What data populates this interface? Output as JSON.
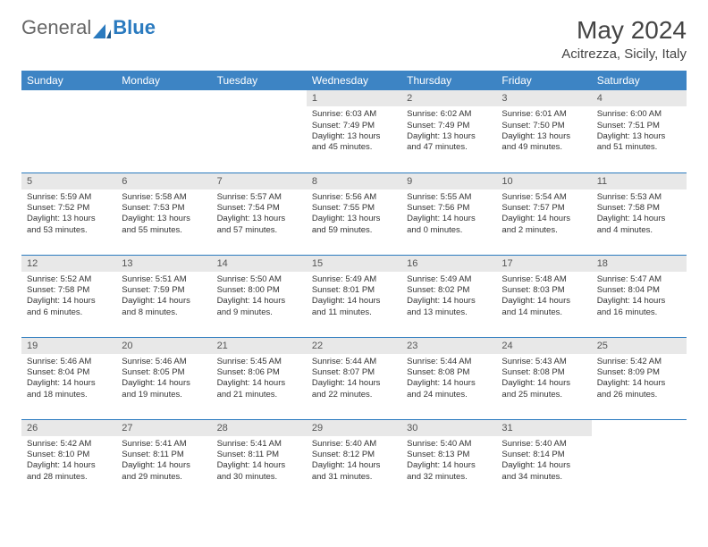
{
  "brand": {
    "part1": "General",
    "part2": "Blue"
  },
  "title": "May 2024",
  "location": "Acitrezza, Sicily, Italy",
  "header_bg": "#3d84c4",
  "rule_color": "#2a7abf",
  "daynum_bg": "#e8e8e8",
  "weekdays": [
    "Sunday",
    "Monday",
    "Tuesday",
    "Wednesday",
    "Thursday",
    "Friday",
    "Saturday"
  ],
  "weeks": [
    [
      null,
      null,
      null,
      {
        "n": "1",
        "sr": "Sunrise: 6:03 AM",
        "ss": "Sunset: 7:49 PM",
        "d1": "Daylight: 13 hours",
        "d2": "and 45 minutes."
      },
      {
        "n": "2",
        "sr": "Sunrise: 6:02 AM",
        "ss": "Sunset: 7:49 PM",
        "d1": "Daylight: 13 hours",
        "d2": "and 47 minutes."
      },
      {
        "n": "3",
        "sr": "Sunrise: 6:01 AM",
        "ss": "Sunset: 7:50 PM",
        "d1": "Daylight: 13 hours",
        "d2": "and 49 minutes."
      },
      {
        "n": "4",
        "sr": "Sunrise: 6:00 AM",
        "ss": "Sunset: 7:51 PM",
        "d1": "Daylight: 13 hours",
        "d2": "and 51 minutes."
      }
    ],
    [
      {
        "n": "5",
        "sr": "Sunrise: 5:59 AM",
        "ss": "Sunset: 7:52 PM",
        "d1": "Daylight: 13 hours",
        "d2": "and 53 minutes."
      },
      {
        "n": "6",
        "sr": "Sunrise: 5:58 AM",
        "ss": "Sunset: 7:53 PM",
        "d1": "Daylight: 13 hours",
        "d2": "and 55 minutes."
      },
      {
        "n": "7",
        "sr": "Sunrise: 5:57 AM",
        "ss": "Sunset: 7:54 PM",
        "d1": "Daylight: 13 hours",
        "d2": "and 57 minutes."
      },
      {
        "n": "8",
        "sr": "Sunrise: 5:56 AM",
        "ss": "Sunset: 7:55 PM",
        "d1": "Daylight: 13 hours",
        "d2": "and 59 minutes."
      },
      {
        "n": "9",
        "sr": "Sunrise: 5:55 AM",
        "ss": "Sunset: 7:56 PM",
        "d1": "Daylight: 14 hours",
        "d2": "and 0 minutes."
      },
      {
        "n": "10",
        "sr": "Sunrise: 5:54 AM",
        "ss": "Sunset: 7:57 PM",
        "d1": "Daylight: 14 hours",
        "d2": "and 2 minutes."
      },
      {
        "n": "11",
        "sr": "Sunrise: 5:53 AM",
        "ss": "Sunset: 7:58 PM",
        "d1": "Daylight: 14 hours",
        "d2": "and 4 minutes."
      }
    ],
    [
      {
        "n": "12",
        "sr": "Sunrise: 5:52 AM",
        "ss": "Sunset: 7:58 PM",
        "d1": "Daylight: 14 hours",
        "d2": "and 6 minutes."
      },
      {
        "n": "13",
        "sr": "Sunrise: 5:51 AM",
        "ss": "Sunset: 7:59 PM",
        "d1": "Daylight: 14 hours",
        "d2": "and 8 minutes."
      },
      {
        "n": "14",
        "sr": "Sunrise: 5:50 AM",
        "ss": "Sunset: 8:00 PM",
        "d1": "Daylight: 14 hours",
        "d2": "and 9 minutes."
      },
      {
        "n": "15",
        "sr": "Sunrise: 5:49 AM",
        "ss": "Sunset: 8:01 PM",
        "d1": "Daylight: 14 hours",
        "d2": "and 11 minutes."
      },
      {
        "n": "16",
        "sr": "Sunrise: 5:49 AM",
        "ss": "Sunset: 8:02 PM",
        "d1": "Daylight: 14 hours",
        "d2": "and 13 minutes."
      },
      {
        "n": "17",
        "sr": "Sunrise: 5:48 AM",
        "ss": "Sunset: 8:03 PM",
        "d1": "Daylight: 14 hours",
        "d2": "and 14 minutes."
      },
      {
        "n": "18",
        "sr": "Sunrise: 5:47 AM",
        "ss": "Sunset: 8:04 PM",
        "d1": "Daylight: 14 hours",
        "d2": "and 16 minutes."
      }
    ],
    [
      {
        "n": "19",
        "sr": "Sunrise: 5:46 AM",
        "ss": "Sunset: 8:04 PM",
        "d1": "Daylight: 14 hours",
        "d2": "and 18 minutes."
      },
      {
        "n": "20",
        "sr": "Sunrise: 5:46 AM",
        "ss": "Sunset: 8:05 PM",
        "d1": "Daylight: 14 hours",
        "d2": "and 19 minutes."
      },
      {
        "n": "21",
        "sr": "Sunrise: 5:45 AM",
        "ss": "Sunset: 8:06 PM",
        "d1": "Daylight: 14 hours",
        "d2": "and 21 minutes."
      },
      {
        "n": "22",
        "sr": "Sunrise: 5:44 AM",
        "ss": "Sunset: 8:07 PM",
        "d1": "Daylight: 14 hours",
        "d2": "and 22 minutes."
      },
      {
        "n": "23",
        "sr": "Sunrise: 5:44 AM",
        "ss": "Sunset: 8:08 PM",
        "d1": "Daylight: 14 hours",
        "d2": "and 24 minutes."
      },
      {
        "n": "24",
        "sr": "Sunrise: 5:43 AM",
        "ss": "Sunset: 8:08 PM",
        "d1": "Daylight: 14 hours",
        "d2": "and 25 minutes."
      },
      {
        "n": "25",
        "sr": "Sunrise: 5:42 AM",
        "ss": "Sunset: 8:09 PM",
        "d1": "Daylight: 14 hours",
        "d2": "and 26 minutes."
      }
    ],
    [
      {
        "n": "26",
        "sr": "Sunrise: 5:42 AM",
        "ss": "Sunset: 8:10 PM",
        "d1": "Daylight: 14 hours",
        "d2": "and 28 minutes."
      },
      {
        "n": "27",
        "sr": "Sunrise: 5:41 AM",
        "ss": "Sunset: 8:11 PM",
        "d1": "Daylight: 14 hours",
        "d2": "and 29 minutes."
      },
      {
        "n": "28",
        "sr": "Sunrise: 5:41 AM",
        "ss": "Sunset: 8:11 PM",
        "d1": "Daylight: 14 hours",
        "d2": "and 30 minutes."
      },
      {
        "n": "29",
        "sr": "Sunrise: 5:40 AM",
        "ss": "Sunset: 8:12 PM",
        "d1": "Daylight: 14 hours",
        "d2": "and 31 minutes."
      },
      {
        "n": "30",
        "sr": "Sunrise: 5:40 AM",
        "ss": "Sunset: 8:13 PM",
        "d1": "Daylight: 14 hours",
        "d2": "and 32 minutes."
      },
      {
        "n": "31",
        "sr": "Sunrise: 5:40 AM",
        "ss": "Sunset: 8:14 PM",
        "d1": "Daylight: 14 hours",
        "d2": "and 34 minutes."
      },
      null
    ]
  ]
}
